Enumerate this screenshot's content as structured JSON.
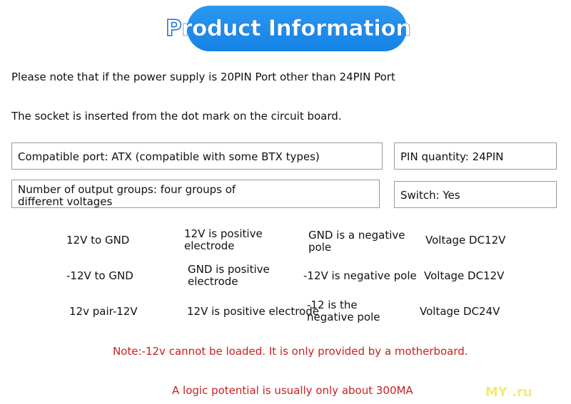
{
  "title_first": "P",
  "title_rest": "roduct Information",
  "note1": "Please note that if the power supply is 20PIN Port other than 24PIN Port",
  "note2": "The socket is inserted from the dot mark on the circuit board.",
  "boxes": [
    "Compatible port: ATX (compatible with some BTX types)",
    "PIN quantity: 24PIN",
    "Number of output groups: four groups of different voltages",
    "Switch: Yes"
  ],
  "rows": [
    [
      "12V to GND",
      "12V is positive electrode",
      "GND is a negative pole",
      "Voltage DC12V"
    ],
    [
      "-12V to GND",
      "GND is positive electrode",
      "-12V is negative pole",
      "Voltage DC12V"
    ],
    [
      "12v pair-12V",
      "12V is positive electrode",
      "-12 is the negative pole",
      "Voltage DC24V"
    ]
  ],
  "warn1": "Note:-12v cannot be loaded. It is only provided by a motherboard.",
  "warn2": "A logic potential is usually only about 300MA",
  "watermark": "MY .ru",
  "colors": {
    "accent": "#1a8ae8",
    "warning": "#c8201e"
  }
}
